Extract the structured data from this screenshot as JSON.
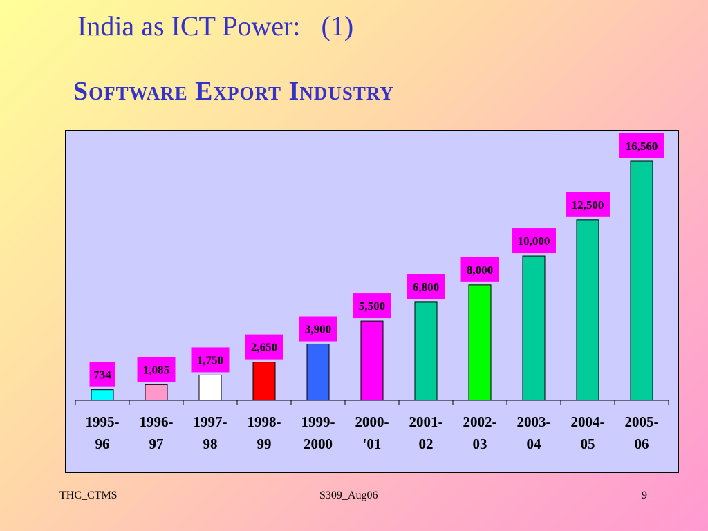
{
  "slide": {
    "title": "India as ICT Power:   (1)",
    "subtitle": "Software Export Industry"
  },
  "footer": {
    "left": "THC_CTMS",
    "center": "S309_Aug06",
    "page": "9"
  },
  "chart_data": {
    "type": "bar",
    "title": "",
    "xlabel": "",
    "ylabel": "",
    "categories": [
      [
        "1995-",
        "96"
      ],
      [
        "1996-",
        "97"
      ],
      [
        "1997-",
        "98"
      ],
      [
        "1998-",
        "99"
      ],
      [
        "1999-",
        "2000"
      ],
      [
        "2000-",
        "'01"
      ],
      [
        "2001-",
        "02"
      ],
      [
        "2002-",
        "03"
      ],
      [
        "2003-",
        "04"
      ],
      [
        "2004-",
        "05"
      ],
      [
        "2005-",
        "06"
      ]
    ],
    "values": [
      734,
      1085,
      1750,
      2650,
      3900,
      5500,
      6800,
      8000,
      10000,
      12500,
      16560
    ],
    "data_labels": [
      "734",
      "1,085",
      "1,750",
      "2,650",
      "3,900",
      "5,500",
      "6,800",
      "8,000",
      "10,000",
      "12,500",
      "16,560"
    ],
    "bar_colors": [
      "#00ffff",
      "#ff99cc",
      "#ffffff",
      "#ff0000",
      "#3366ff",
      "#ff00ff",
      "#00cc99",
      "#00ff00",
      "#00cc99",
      "#00cc99",
      "#00cc99"
    ],
    "label_bg": "#ff00ff",
    "plot_bg": "#ccccff",
    "grid": false,
    "legend": "none"
  }
}
